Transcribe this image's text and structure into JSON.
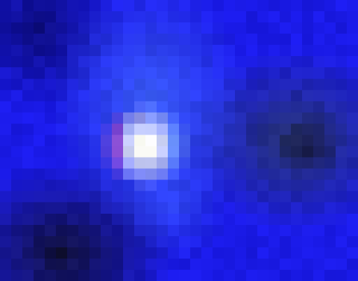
{
  "image": {
    "description_kind": "pixelated-false-color-blob",
    "palette": {
      "deep_blue": "#0a0a6e",
      "royal_blue": "#1a1ae6",
      "bright_blue": "#2a4bff",
      "light_blue": "#5a8cff",
      "navy_shadow": "#101030",
      "teal_shadow": "#2a3a55",
      "hot_pink": "#ff3c8c",
      "magenta": "#ff5ac8",
      "peach": "#ffd8b0",
      "white_core": "#ffffff",
      "ice": "#b8e6ff"
    }
  }
}
